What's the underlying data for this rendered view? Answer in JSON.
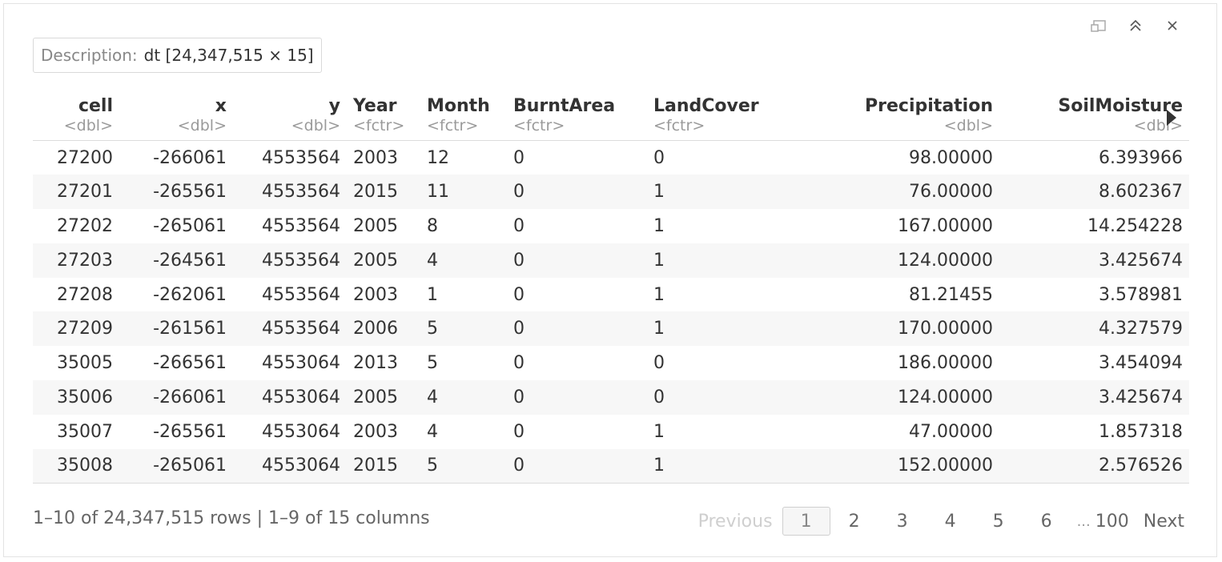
{
  "toolbar": {
    "icons": [
      "popout-icon",
      "collapse-icon",
      "close-icon"
    ]
  },
  "description": {
    "label": "Description:",
    "value": "dt [24,347,515 × 15]"
  },
  "columns": [
    {
      "name": "cell",
      "type": "<dbl>",
      "align": "r"
    },
    {
      "name": "x",
      "type": "<dbl>",
      "align": "r"
    },
    {
      "name": "y",
      "type": "<dbl>",
      "align": "r"
    },
    {
      "name": "Year",
      "type": "<fctr>",
      "align": "l"
    },
    {
      "name": "Month",
      "type": "<fctr>",
      "align": "l"
    },
    {
      "name": "BurntArea",
      "type": "<fctr>",
      "align": "l"
    },
    {
      "name": "LandCover",
      "type": "<fctr>",
      "align": "l"
    },
    {
      "name": "Precipitation",
      "type": "<dbl>",
      "align": "r"
    },
    {
      "name": "SoilMoisture",
      "type": "<dbl>",
      "align": "r"
    }
  ],
  "rows": [
    [
      "27200",
      "-266061",
      "4553564",
      "2003",
      "12",
      "0",
      "0",
      "98.00000",
      "6.393966"
    ],
    [
      "27201",
      "-265561",
      "4553564",
      "2015",
      "11",
      "0",
      "1",
      "76.00000",
      "8.602367"
    ],
    [
      "27202",
      "-265061",
      "4553564",
      "2005",
      "8",
      "0",
      "1",
      "167.00000",
      "14.254228"
    ],
    [
      "27203",
      "-264561",
      "4553564",
      "2005",
      "4",
      "0",
      "1",
      "124.00000",
      "3.425674"
    ],
    [
      "27208",
      "-262061",
      "4553564",
      "2003",
      "1",
      "0",
      "1",
      "81.21455",
      "3.578981"
    ],
    [
      "27209",
      "-261561",
      "4553564",
      "2006",
      "5",
      "0",
      "1",
      "170.00000",
      "4.327579"
    ],
    [
      "35005",
      "-266561",
      "4553064",
      "2013",
      "5",
      "0",
      "0",
      "186.00000",
      "3.454094"
    ],
    [
      "35006",
      "-266061",
      "4553064",
      "2005",
      "4",
      "0",
      "0",
      "124.00000",
      "3.425674"
    ],
    [
      "35007",
      "-265561",
      "4553064",
      "2003",
      "4",
      "0",
      "1",
      "47.00000",
      "1.857318"
    ],
    [
      "35008",
      "-265061",
      "4553064",
      "2015",
      "5",
      "0",
      "1",
      "152.00000",
      "2.576526"
    ]
  ],
  "footer": {
    "info": "1–10 of 24,347,515 rows | 1–9 of 15 columns"
  },
  "pagination": {
    "previous": "Previous",
    "pages": [
      "1",
      "2",
      "3",
      "4",
      "5",
      "6"
    ],
    "current": "1",
    "ellipsis": "...",
    "last": "100",
    "next": "Next"
  }
}
